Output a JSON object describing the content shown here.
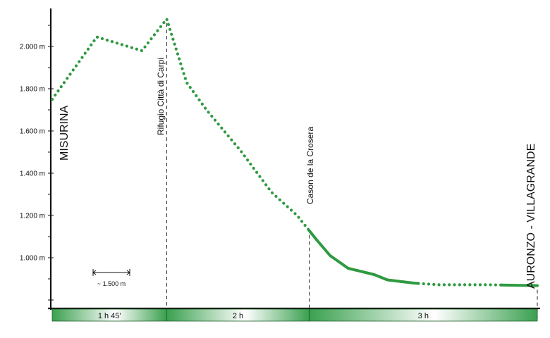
{
  "chart_data": {
    "type": "line",
    "title": "",
    "xlabel": "",
    "ylabel": "",
    "ylim": [
      760,
      2180
    ],
    "xlim": [
      0,
      100
    ],
    "yticks": [
      {
        "value": 1000,
        "label": "1.000 m"
      },
      {
        "value": 1200,
        "label": "1.200 m"
      },
      {
        "value": 1400,
        "label": "1.400 m"
      },
      {
        "value": 1600,
        "label": "1.600 m"
      },
      {
        "value": 1800,
        "label": "1.800 m"
      },
      {
        "value": 2000,
        "label": "2.000 m"
      }
    ],
    "profile": {
      "name": "",
      "x": [
        0,
        9.2,
        18.5,
        23.6,
        27.7,
        31.8,
        38.9,
        45.2,
        50.5,
        54.5,
        57.3,
        61.0,
        66.4,
        69.1,
        74.5,
        79.7,
        90.0,
        94.5,
        100.0
      ],
      "y": [
        1750,
        2045,
        1980,
        2130,
        1830,
        1700,
        1505,
        1310,
        1200,
        1085,
        1010,
        950,
        920,
        895,
        880,
        872,
        872,
        870,
        868
      ],
      "line_color": "#2e9a40",
      "style_segments": [
        {
          "from_x": 0,
          "to_x": 53.0,
          "style": "dotted"
        },
        {
          "from_x": 53.0,
          "to_x": 75.5,
          "style": "solid"
        },
        {
          "from_x": 75.5,
          "to_x": 92.5,
          "style": "dotted"
        },
        {
          "from_x": 92.5,
          "to_x": 100,
          "style": "solid"
        }
      ]
    },
    "places": [
      {
        "name": "MISURINA",
        "x": 0,
        "dashed_line": false
      },
      {
        "name": "Rifugio Città di Carpi",
        "x": 23.6,
        "dashed_line": true
      },
      {
        "name": "Cason de la Crosera",
        "x": 53.0,
        "dashed_line": true
      },
      {
        "name": "AURONZO - VILLAGRANDE",
        "x": 100,
        "dashed_line": true
      }
    ],
    "time_segments": [
      {
        "label": "1 h 45'",
        "from_x": 0,
        "to_x": 23.6
      },
      {
        "label": "2 h",
        "from_x": 23.6,
        "to_x": 53.0
      },
      {
        "label": "3 h",
        "from_x": 53.0,
        "to_x": 100
      }
    ],
    "scale_bar": {
      "label": "~ 1.500 m"
    },
    "colors": {
      "profile": "#2e9a40",
      "segment_bar_dark": "#3aa04f",
      "segment_bar_light": "#d8efdb",
      "axis": "#111111"
    }
  }
}
